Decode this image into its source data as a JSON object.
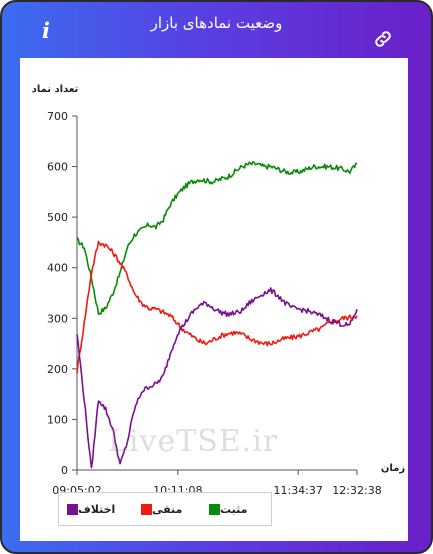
{
  "header": {
    "title": "وضعیت نمادهای بازار",
    "info_glyph": "i",
    "link_icon": "link-icon",
    "info_icon": "info-icon"
  },
  "watermark": "LiveTSE.ir",
  "colors": {
    "positive": "#0a8a0a",
    "negative": "#f01a10",
    "difference": "#7a1090"
  },
  "chart_data": {
    "type": "line",
    "ylabel": "تعداد نماد",
    "xlabel": "زمان",
    "ylim": [
      0,
      700
    ],
    "yticks": [
      0,
      100,
      200,
      300,
      400,
      500,
      600,
      700
    ],
    "xticks": [
      "09:05:02",
      "10:11:08",
      "11:34:37",
      "12:32:38"
    ],
    "legend_position": "bottom-left",
    "grid": false,
    "x": [
      "09:05",
      "09:09",
      "09:13",
      "09:17",
      "09:21",
      "09:25",
      "09:29",
      "09:33",
      "09:37",
      "09:41",
      "09:45",
      "09:50",
      "09:55",
      "10:00",
      "10:05",
      "10:11",
      "10:17",
      "10:23",
      "10:29",
      "10:35",
      "10:41",
      "10:47",
      "10:53",
      "10:59",
      "11:05",
      "11:11",
      "11:17",
      "11:23",
      "11:29",
      "11:34",
      "11:40",
      "11:46",
      "11:52",
      "11:58",
      "12:04",
      "12:10",
      "12:16",
      "12:22",
      "12:27",
      "12:32"
    ],
    "series": [
      {
        "name": "مثبت",
        "color": "#0a8a0a",
        "values": [
          455,
          440,
          380,
          310,
          320,
          350,
          390,
          440,
          465,
          475,
          485,
          480,
          495,
          525,
          545,
          560,
          570,
          575,
          572,
          570,
          575,
          580,
          590,
          600,
          605,
          605,
          600,
          600,
          595,
          590,
          588,
          590,
          595,
          600,
          600,
          600,
          598,
          595,
          590,
          605
        ]
      },
      {
        "name": "منفی",
        "color": "#f01a10",
        "values": [
          195,
          290,
          390,
          450,
          445,
          430,
          410,
          385,
          350,
          330,
          320,
          318,
          312,
          305,
          290,
          275,
          265,
          255,
          250,
          258,
          265,
          270,
          272,
          268,
          260,
          255,
          250,
          250,
          255,
          260,
          262,
          265,
          270,
          275,
          280,
          290,
          295,
          300,
          302,
          305
        ]
      },
      {
        "name": "اختلاف",
        "color": "#7a1090",
        "values": [
          270,
          140,
          0,
          140,
          120,
          80,
          10,
          55,
          120,
          155,
          165,
          170,
          185,
          230,
          270,
          290,
          310,
          325,
          330,
          320,
          312,
          308,
          310,
          315,
          330,
          340,
          350,
          355,
          345,
          330,
          320,
          318,
          315,
          310,
          305,
          298,
          292,
          288,
          286,
          318
        ]
      }
    ]
  }
}
